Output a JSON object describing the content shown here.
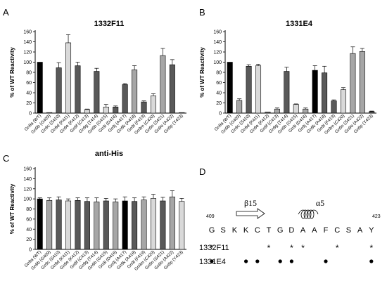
{
  "panel_labels": {
    "a": "A",
    "b": "B",
    "c": "C",
    "d": "D"
  },
  "colors": {
    "wt": "#000000",
    "light": "#d9d9d9",
    "medium": "#a6a6a6",
    "dark": "#595959",
    "axis": "#000000"
  },
  "chart_data": [
    {
      "type": "bar",
      "panel": "A",
      "title": "1332F11",
      "ylabel": "% of WT Reactivity",
      "ylim": [
        0,
        160
      ],
      "yticks": [
        0,
        20,
        40,
        60,
        80,
        100,
        120,
        140,
        160
      ],
      "categories": [
        "Gn9a (WT)",
        "Gn9b (G409)",
        "Gn9c (S410)",
        "Gn9d (K411)",
        "Gn9e (K412)",
        "Gn9f (C413)",
        "Gn9g (T414)",
        "Gn9h (G415)",
        "Gn9i (D416)",
        "Gn9j (A417)",
        "Gn9k (A418)",
        "Gn9l (F419)",
        "Gn9m (C420)",
        "Gn9n (S421)",
        "Gn9o (A422)",
        "Gn9p (Y423)"
      ],
      "values": [
        100,
        1,
        89,
        138,
        93,
        7,
        82,
        12,
        12,
        56,
        85,
        22,
        34,
        113,
        95,
        1
      ],
      "errors": [
        0,
        0,
        10,
        16,
        7,
        1,
        6,
        5,
        2,
        2,
        8,
        2,
        4,
        14,
        10,
        0
      ],
      "shade": [
        "wt",
        "light",
        "dark",
        "light",
        "dark",
        "light",
        "dark",
        "light",
        "dark",
        "dark",
        "medium",
        "dark",
        "light",
        "medium",
        "dark",
        "light"
      ]
    },
    {
      "type": "bar",
      "panel": "B",
      "title": "1331E4",
      "ylabel": "% of WT Reactivity",
      "ylim": [
        0,
        160
      ],
      "yticks": [
        0,
        20,
        40,
        60,
        80,
        100,
        120,
        140,
        160
      ],
      "categories": [
        "Gn9a (WT)",
        "Gn9b (G409)",
        "Gn9c (S410)",
        "Gn9d (K411)",
        "Gn9e (K412)",
        "Gn9f (C413)",
        "Gn9g (T414)",
        "Gn9h (G415)",
        "Gn9i (D416)",
        "Gn9j (A417)",
        "Gn9k (A418)",
        "Gn9l (F419)",
        "Gn9m (C420)",
        "Gn9n (S421)",
        "Gn9o (A422)",
        "Gn9p (Y423)"
      ],
      "values": [
        100,
        25,
        92,
        93,
        2,
        8,
        82,
        17,
        8,
        84,
        79,
        24,
        46,
        117,
        121,
        3
      ],
      "errors": [
        0,
        3,
        3,
        3,
        0,
        2,
        8,
        1,
        2,
        9,
        13,
        2,
        4,
        13,
        6,
        1
      ],
      "shade": [
        "wt",
        "medium",
        "dark",
        "light",
        "dark",
        "medium",
        "dark",
        "light",
        "medium",
        "wt",
        "dark",
        "dark",
        "light",
        "medium",
        "medium",
        "dark"
      ]
    },
    {
      "type": "bar",
      "panel": "C",
      "title": "anti-His",
      "ylabel": "% of WT Reactivity",
      "ylim": [
        0,
        160
      ],
      "yticks": [
        0,
        20,
        40,
        60,
        80,
        100,
        120,
        140,
        160
      ],
      "categories": [
        "Gn9a (WT)",
        "Gn9b (G409)",
        "Gn9c (S410)",
        "Gn9d (K411)",
        "Gn9e (K412)",
        "Gn9f (C413)",
        "Gn9g (T414)",
        "Gn9h (G415)",
        "Gn9i (D416)",
        "Gn9j (A417)",
        "Gn9k (A418)",
        "Gn9l (F419)",
        "Gn9m (C420)",
        "Gn9n (S421)",
        "Gn9o (A422)",
        "Gn9p (Y423)"
      ],
      "values": [
        100,
        97,
        98,
        96,
        97,
        95,
        94,
        96,
        94,
        96,
        95,
        98,
        101,
        96,
        104,
        95
      ],
      "errors": [
        2,
        5,
        6,
        4,
        5,
        7,
        8,
        5,
        6,
        8,
        7,
        6,
        8,
        7,
        12,
        6
      ],
      "shade": [
        "wt",
        "medium",
        "dark",
        "light",
        "dark",
        "dark",
        "medium",
        "dark",
        "medium",
        "wt",
        "dark",
        "medium",
        "light",
        "dark",
        "medium",
        "light"
      ]
    }
  ],
  "panel_d": {
    "start_label": "409",
    "end_label": "423",
    "strand_label": "β15",
    "helix_label": "α5",
    "residues": [
      "G",
      "S",
      "K",
      "K",
      "C",
      "T",
      "G",
      "D",
      "A",
      "A",
      "F",
      "C",
      "S",
      "A",
      "Y"
    ],
    "rows": [
      {
        "label": "1332F11",
        "marks": [
          "*",
          "",
          "",
          "",
          "",
          "*",
          "",
          "*",
          "*",
          "",
          "",
          "*",
          "",
          "",
          "*"
        ]
      },
      {
        "label": "1331E4",
        "marks": [
          "•",
          "",
          "",
          "•",
          "•",
          "",
          "•",
          "•",
          "",
          "",
          "•",
          "",
          "",
          "",
          "•"
        ]
      }
    ]
  }
}
